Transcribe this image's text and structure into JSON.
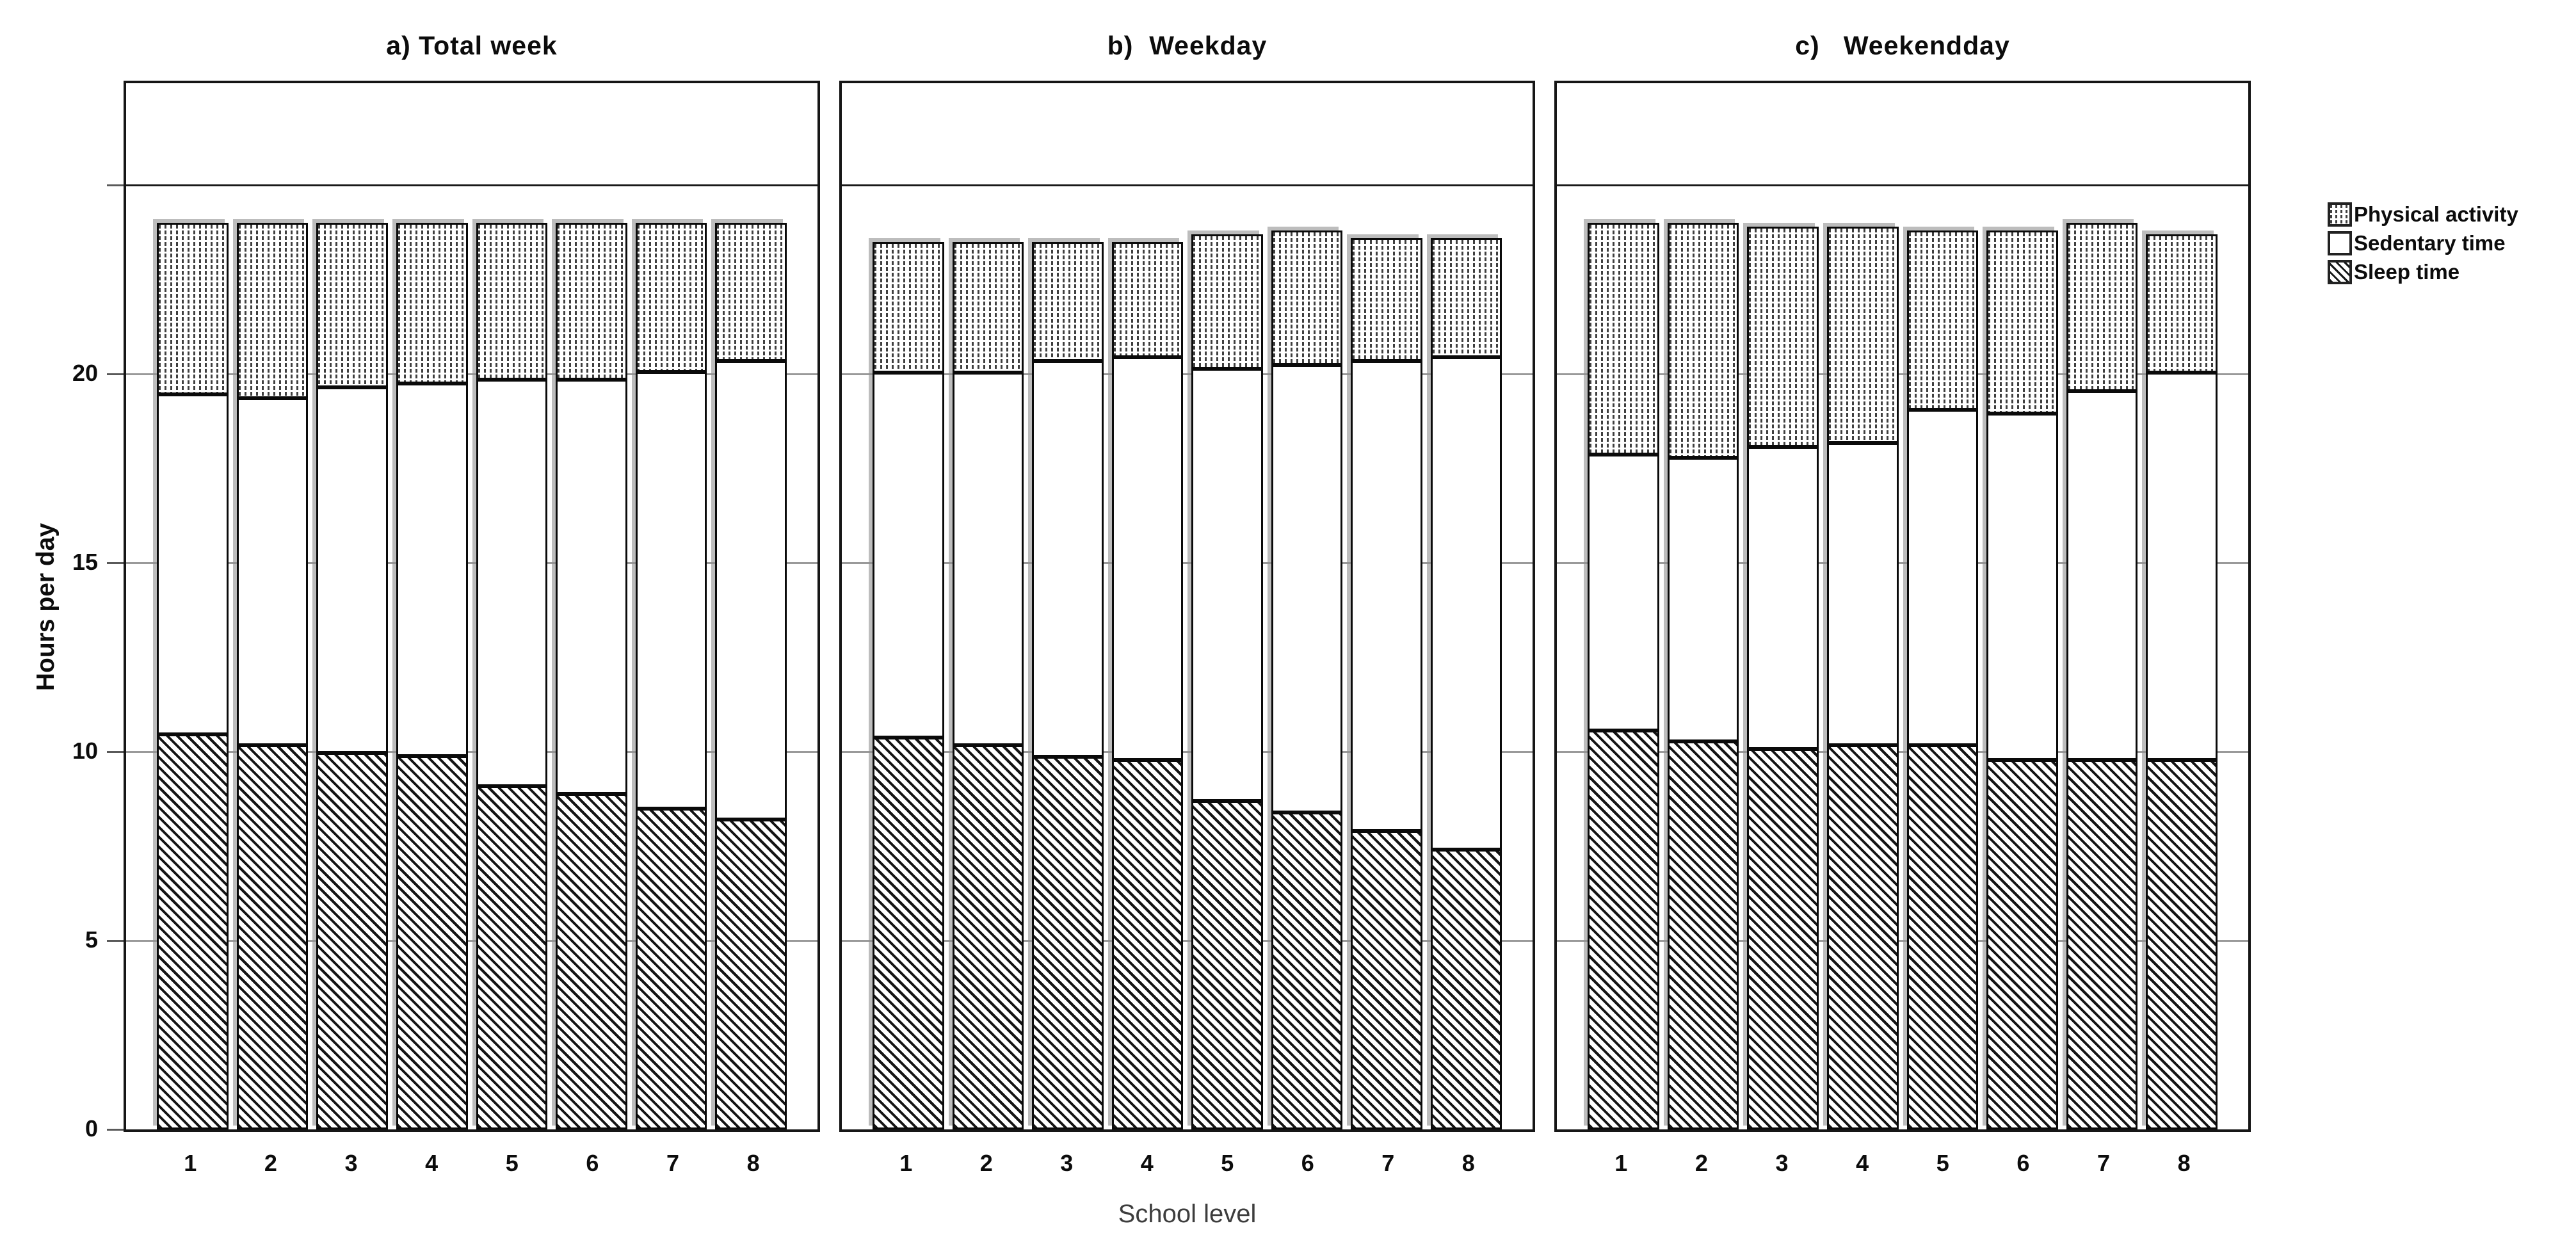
{
  "chart_data": {
    "type": "bar",
    "stacked": true,
    "xlabel": "School level",
    "ylabel": "Hours per day",
    "categories": [
      "1",
      "2",
      "3",
      "4",
      "5",
      "6",
      "7",
      "8"
    ],
    "yticks": [
      0,
      5,
      10,
      15,
      20
    ],
    "unlabeled_gridline": 25,
    "ylim": [
      0,
      27.7
    ],
    "grid": "horizontal-gray",
    "legend_position": "right-top",
    "units": "hours per day",
    "panels": [
      {
        "id": "a",
        "title": "a) Total week",
        "series": [
          {
            "name": "Sleep time",
            "pattern": "diagonal-hatch",
            "values": [
              10.5,
              10.2,
              10.0,
              9.9,
              9.1,
              8.9,
              8.5,
              8.2
            ]
          },
          {
            "name": "Sedentary time",
            "pattern": "white",
            "values": [
              9.0,
              9.2,
              9.7,
              9.9,
              10.8,
              11.0,
              11.6,
              12.2
            ]
          },
          {
            "name": "Physical activity",
            "pattern": "dots",
            "values": [
              4.5,
              4.6,
              4.3,
              4.2,
              4.1,
              4.1,
              3.9,
              3.6
            ]
          }
        ]
      },
      {
        "id": "b",
        "title": "b)  Weekday",
        "series": [
          {
            "name": "Sleep time",
            "pattern": "diagonal-hatch",
            "values": [
              10.4,
              10.2,
              9.9,
              9.8,
              8.7,
              8.4,
              7.9,
              7.4
            ]
          },
          {
            "name": "Sedentary time",
            "pattern": "white",
            "values": [
              9.7,
              9.9,
              10.5,
              10.7,
              11.5,
              11.9,
              12.5,
              13.1
            ]
          },
          {
            "name": "Physical activity",
            "pattern": "dots",
            "values": [
              3.4,
              3.4,
              3.1,
              3.0,
              3.5,
              3.5,
              3.2,
              3.1
            ]
          }
        ]
      },
      {
        "id": "c",
        "title": "c)   Weekendday",
        "series": [
          {
            "name": "Sleep time",
            "pattern": "diagonal-hatch",
            "values": [
              10.6,
              10.3,
              10.1,
              10.2,
              10.2,
              9.8,
              9.8,
              9.8
            ]
          },
          {
            "name": "Sedentary time",
            "pattern": "white",
            "values": [
              7.3,
              7.5,
              8.0,
              8.0,
              8.9,
              9.2,
              9.8,
              10.3
            ]
          },
          {
            "name": "Physical activity",
            "pattern": "dots",
            "values": [
              6.1,
              6.2,
              5.8,
              5.7,
              4.7,
              4.8,
              4.4,
              3.6
            ]
          }
        ]
      }
    ],
    "legend": [
      {
        "label": "Physical activity",
        "pattern": "dots"
      },
      {
        "label": "Sedentary time",
        "pattern": "white"
      },
      {
        "label": "Sleep time",
        "pattern": "diagonal-hatch"
      }
    ]
  }
}
